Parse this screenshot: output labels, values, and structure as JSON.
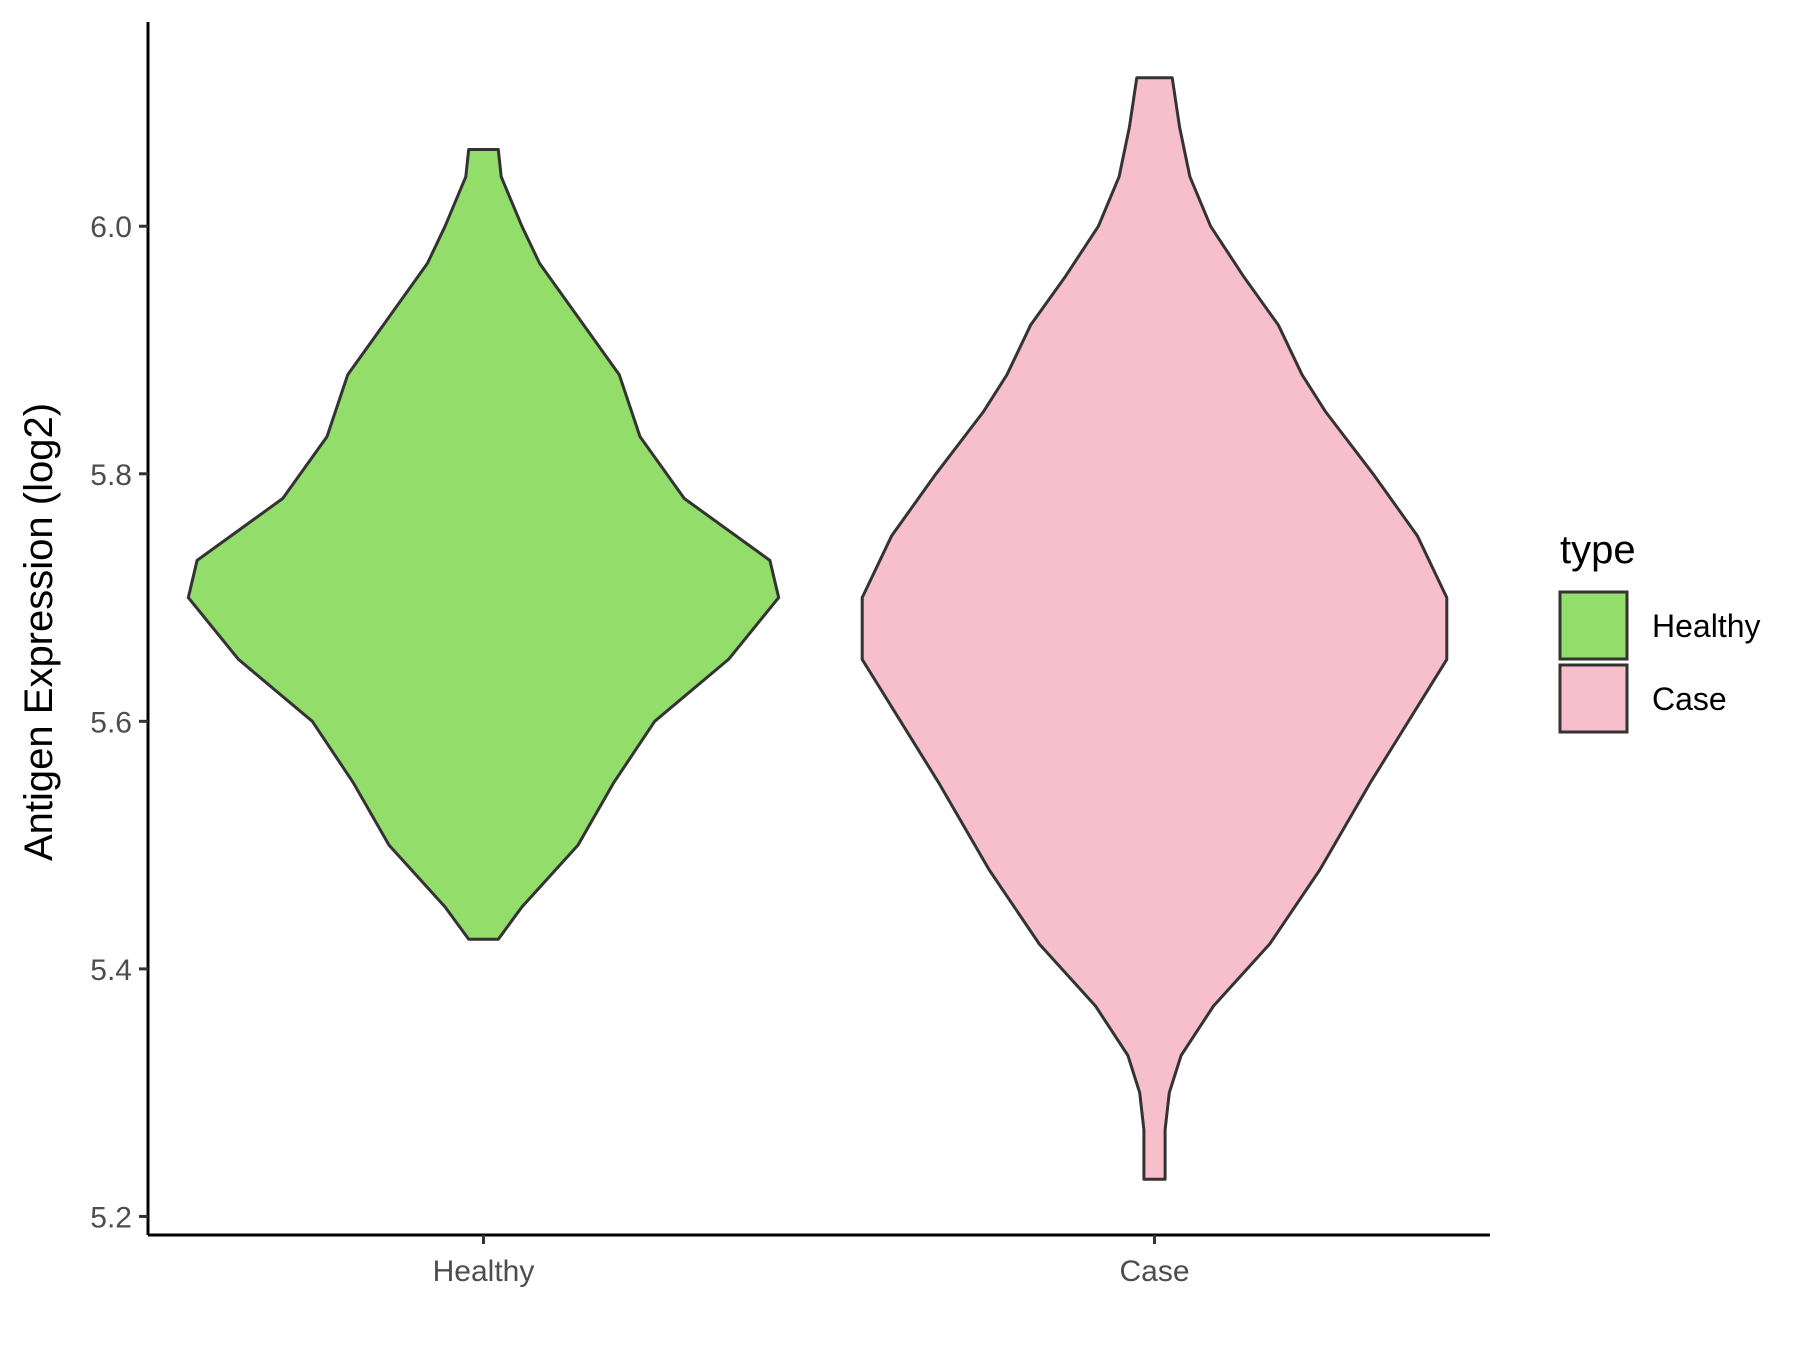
{
  "chart_data": {
    "type": "violin",
    "ylabel": "Antigen Expression (log2)",
    "xlabel": "",
    "categories": [
      "Healthy",
      "Case"
    ],
    "ylim": [
      5.185,
      6.165
    ],
    "yticks": [
      5.2,
      5.4,
      5.6,
      5.8,
      6.0
    ],
    "ytick_labels": [
      "5.2",
      "5.4",
      "5.6",
      "5.8",
      "6.0"
    ],
    "grid": false,
    "legend": {
      "title": "type",
      "position": "right",
      "entries": [
        {
          "label": "Healthy",
          "color": "#93dd6a"
        },
        {
          "label": "Case",
          "color": "#f7bfcb"
        }
      ]
    },
    "series": [
      {
        "name": "Healthy",
        "color": "#93dd6a",
        "min": 5.424,
        "max": 6.062,
        "density": [
          [
            5.424,
            0.05
          ],
          [
            5.45,
            0.13
          ],
          [
            5.5,
            0.32
          ],
          [
            5.55,
            0.44
          ],
          [
            5.6,
            0.58
          ],
          [
            5.65,
            0.83
          ],
          [
            5.7,
            1.0
          ],
          [
            5.73,
            0.97
          ],
          [
            5.78,
            0.68
          ],
          [
            5.83,
            0.53
          ],
          [
            5.88,
            0.46
          ],
          [
            5.93,
            0.31
          ],
          [
            5.97,
            0.19
          ],
          [
            6.0,
            0.13
          ],
          [
            6.04,
            0.06
          ],
          [
            6.062,
            0.05
          ]
        ]
      },
      {
        "name": "Case",
        "color": "#f7bfcb",
        "min": 5.23,
        "max": 6.12,
        "density": [
          [
            5.23,
            0.036
          ],
          [
            5.27,
            0.036
          ],
          [
            5.3,
            0.05
          ],
          [
            5.33,
            0.09
          ],
          [
            5.37,
            0.2
          ],
          [
            5.42,
            0.39
          ],
          [
            5.48,
            0.56
          ],
          [
            5.55,
            0.73
          ],
          [
            5.6,
            0.86
          ],
          [
            5.65,
            0.99
          ],
          [
            5.7,
            0.99
          ],
          [
            5.75,
            0.89
          ],
          [
            5.8,
            0.74
          ],
          [
            5.85,
            0.58
          ],
          [
            5.88,
            0.5
          ],
          [
            5.92,
            0.42
          ],
          [
            5.96,
            0.3
          ],
          [
            6.0,
            0.19
          ],
          [
            6.04,
            0.12
          ],
          [
            6.08,
            0.085
          ],
          [
            6.12,
            0.06
          ]
        ]
      }
    ]
  }
}
